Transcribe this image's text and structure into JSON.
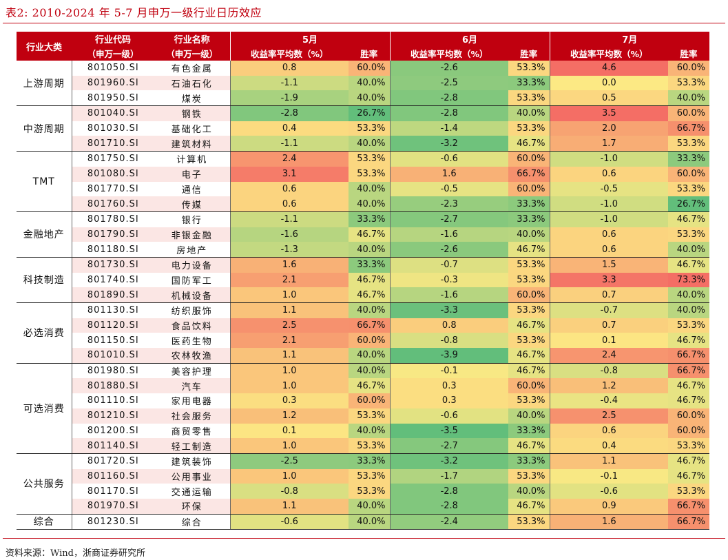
{
  "title": "表2:  2010-2024 年 5-7 月申万一级行业日历效应",
  "source": "资料来源：Wind，浙商证券研究所",
  "header": {
    "category": "行业大类",
    "code_line1": "行业代码",
    "code_line2": "（申万一级）",
    "name_line1": "行业名称",
    "name_line2": "（申万一级）",
    "months": [
      "5月",
      "6月",
      "7月"
    ],
    "avg_label": "收益率平均数（%）",
    "win_label": "胜率"
  },
  "colors": {
    "header_bg": "#c0000f",
    "alt_row_bg": "#fbe6e4"
  },
  "groups": [
    {
      "category": "上游周期",
      "rows": [
        {
          "code": "801050.SI",
          "name": "有色金属",
          "m5": [
            "0.8",
            "60.0%"
          ],
          "m6": [
            "-2.6",
            "53.3%"
          ],
          "m7": [
            "4.6",
            "60.0%"
          ]
        },
        {
          "code": "801960.SI",
          "name": "石油石化",
          "m5": [
            "-1.1",
            "40.0%"
          ],
          "m6": [
            "-2.5",
            "33.3%"
          ],
          "m7": [
            "0.0",
            "53.3%"
          ]
        },
        {
          "code": "801950.SI",
          "name": "煤炭",
          "m5": [
            "-1.9",
            "40.0%"
          ],
          "m6": [
            "-2.8",
            "53.3%"
          ],
          "m7": [
            "0.5",
            "40.0%"
          ]
        }
      ]
    },
    {
      "category": "中游周期",
      "rows": [
        {
          "code": "801040.SI",
          "name": "钢铁",
          "m5": [
            "-2.8",
            "26.7%"
          ],
          "m6": [
            "-2.8",
            "40.0%"
          ],
          "m7": [
            "3.5",
            "60.0%"
          ]
        },
        {
          "code": "801030.SI",
          "name": "基础化工",
          "m5": [
            "0.4",
            "53.3%"
          ],
          "m6": [
            "-1.4",
            "53.3%"
          ],
          "m7": [
            "2.0",
            "66.7%"
          ]
        },
        {
          "code": "801710.SI",
          "name": "建筑材料",
          "m5": [
            "-1.1",
            "40.0%"
          ],
          "m6": [
            "-3.2",
            "46.7%"
          ],
          "m7": [
            "1.7",
            "53.3%"
          ]
        }
      ]
    },
    {
      "category": "TMT",
      "rows": [
        {
          "code": "801750.SI",
          "name": "计算机",
          "m5": [
            "2.4",
            "53.3%"
          ],
          "m6": [
            "-0.6",
            "60.0%"
          ],
          "m7": [
            "-1.0",
            "33.3%"
          ]
        },
        {
          "code": "801080.SI",
          "name": "电子",
          "m5": [
            "3.1",
            "53.3%"
          ],
          "m6": [
            "1.6",
            "66.7%"
          ],
          "m7": [
            "0.6",
            "60.0%"
          ]
        },
        {
          "code": "801770.SI",
          "name": "通信",
          "m5": [
            "0.6",
            "40.0%"
          ],
          "m6": [
            "-0.5",
            "60.0%"
          ],
          "m7": [
            "-0.5",
            "53.3%"
          ]
        },
        {
          "code": "801760.SI",
          "name": "传媒",
          "m5": [
            "0.6",
            "40.0%"
          ],
          "m6": [
            "-2.3",
            "33.3%"
          ],
          "m7": [
            "-1.0",
            "26.7%"
          ]
        }
      ]
    },
    {
      "category": "金融地产",
      "rows": [
        {
          "code": "801780.SI",
          "name": "银行",
          "m5": [
            "-1.1",
            "33.3%"
          ],
          "m6": [
            "-2.7",
            "33.3%"
          ],
          "m7": [
            "-1.0",
            "46.7%"
          ]
        },
        {
          "code": "801790.SI",
          "name": "非银金融",
          "m5": [
            "-1.6",
            "46.7%"
          ],
          "m6": [
            "-1.6",
            "40.0%"
          ],
          "m7": [
            "0.6",
            "53.3%"
          ]
        },
        {
          "code": "801180.SI",
          "name": "房地产",
          "m5": [
            "-1.3",
            "40.0%"
          ],
          "m6": [
            "-2.6",
            "46.7%"
          ],
          "m7": [
            "0.6",
            "40.0%"
          ]
        }
      ]
    },
    {
      "category": "科技制造",
      "rows": [
        {
          "code": "801730.SI",
          "name": "电力设备",
          "m5": [
            "1.6",
            "33.3%"
          ],
          "m6": [
            "-0.7",
            "53.3%"
          ],
          "m7": [
            "1.5",
            "46.7%"
          ]
        },
        {
          "code": "801740.SI",
          "name": "国防军工",
          "m5": [
            "2.1",
            "46.7%"
          ],
          "m6": [
            "-0.3",
            "53.3%"
          ],
          "m7": [
            "3.3",
            "73.3%"
          ]
        },
        {
          "code": "801890.SI",
          "name": "机械设备",
          "m5": [
            "1.0",
            "46.7%"
          ],
          "m6": [
            "-1.6",
            "60.0%"
          ],
          "m7": [
            "0.7",
            "40.0%"
          ]
        }
      ]
    },
    {
      "category": "必选消费",
      "rows": [
        {
          "code": "801130.SI",
          "name": "纺织服饰",
          "m5": [
            "1.1",
            "40.0%"
          ],
          "m6": [
            "-3.3",
            "53.3%"
          ],
          "m7": [
            "-0.7",
            "40.0%"
          ]
        },
        {
          "code": "801120.SI",
          "name": "食品饮料",
          "m5": [
            "2.5",
            "66.7%"
          ],
          "m6": [
            "0.8",
            "46.7%"
          ],
          "m7": [
            "0.7",
            "53.3%"
          ]
        },
        {
          "code": "801150.SI",
          "name": "医药生物",
          "m5": [
            "2.1",
            "60.0%"
          ],
          "m6": [
            "-0.8",
            "53.3%"
          ],
          "m7": [
            "0.1",
            "46.7%"
          ]
        },
        {
          "code": "801010.SI",
          "name": "农林牧渔",
          "m5": [
            "1.1",
            "40.0%"
          ],
          "m6": [
            "-3.9",
            "46.7%"
          ],
          "m7": [
            "2.4",
            "66.7%"
          ]
        }
      ]
    },
    {
      "category": "可选消费",
      "rows": [
        {
          "code": "801980.SI",
          "name": "美容护理",
          "m5": [
            "1.0",
            "40.0%"
          ],
          "m6": [
            "-0.1",
            "46.7%"
          ],
          "m7": [
            "-0.8",
            "66.7%"
          ]
        },
        {
          "code": "801880.SI",
          "name": "汽车",
          "m5": [
            "1.0",
            "46.7%"
          ],
          "m6": [
            "0.3",
            "60.0%"
          ],
          "m7": [
            "1.2",
            "46.7%"
          ]
        },
        {
          "code": "801110.SI",
          "name": "家用电器",
          "m5": [
            "0.3",
            "60.0%"
          ],
          "m6": [
            "0.3",
            "53.3%"
          ],
          "m7": [
            "-0.4",
            "46.7%"
          ]
        },
        {
          "code": "801210.SI",
          "name": "社会服务",
          "m5": [
            "1.2",
            "53.3%"
          ],
          "m6": [
            "-0.6",
            "40.0%"
          ],
          "m7": [
            "2.5",
            "60.0%"
          ]
        },
        {
          "code": "801200.SI",
          "name": "商贸零售",
          "m5": [
            "0.1",
            "40.0%"
          ],
          "m6": [
            "-3.5",
            "33.3%"
          ],
          "m7": [
            "0.6",
            "60.0%"
          ]
        },
        {
          "code": "801140.SI",
          "name": "轻工制造",
          "m5": [
            "1.0",
            "53.3%"
          ],
          "m6": [
            "-2.7",
            "46.7%"
          ],
          "m7": [
            "0.4",
            "53.3%"
          ]
        }
      ]
    },
    {
      "category": "公共服务",
      "rows": [
        {
          "code": "801720.SI",
          "name": "建筑装饰",
          "m5": [
            "-2.5",
            "33.3%"
          ],
          "m6": [
            "-3.2",
            "33.3%"
          ],
          "m7": [
            "1.1",
            "46.7%"
          ]
        },
        {
          "code": "801160.SI",
          "name": "公用事业",
          "m5": [
            "1.0",
            "53.3%"
          ],
          "m6": [
            "-1.7",
            "53.3%"
          ],
          "m7": [
            "-0.1",
            "46.7%"
          ]
        },
        {
          "code": "801170.SI",
          "name": "交通运输",
          "m5": [
            "-0.8",
            "53.3%"
          ],
          "m6": [
            "-2.8",
            "40.0%"
          ],
          "m7": [
            "-0.6",
            "53.3%"
          ]
        },
        {
          "code": "801970.SI",
          "name": "环保",
          "m5": [
            "1.1",
            "40.0%"
          ],
          "m6": [
            "-2.8",
            "46.7%"
          ],
          "m7": [
            "0.9",
            "66.7%"
          ]
        }
      ]
    },
    {
      "category": "综合",
      "rows": [
        {
          "code": "801230.SI",
          "name": "综合",
          "m5": [
            "-0.6",
            "40.0%"
          ],
          "m6": [
            "-2.4",
            "53.3%"
          ],
          "m7": [
            "1.6",
            "66.7%"
          ]
        }
      ]
    }
  ]
}
